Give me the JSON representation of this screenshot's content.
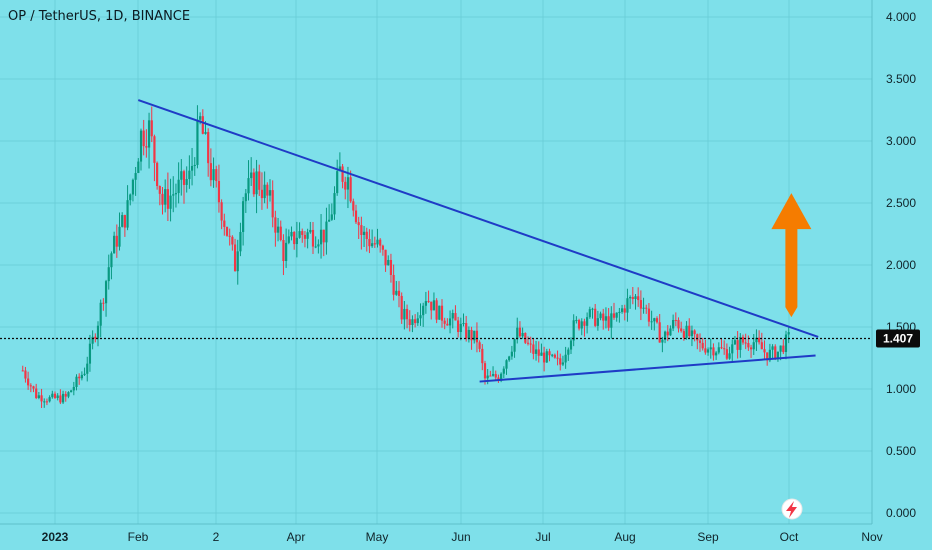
{
  "header": {
    "symbol": "OP / TetherUS, 1D, BINANCE"
  },
  "colors": {
    "background": "#7ee0ea",
    "grid": "#6ccfd9",
    "up": "#089981",
    "down": "#f23645",
    "trendline": "#1f3bc6",
    "arrow": "#f57c00",
    "price_label_bg": "#0b0b0b",
    "price_label_text": "#ffffff"
  },
  "current_price_label": "1.407",
  "chart_data": {
    "type": "candlestick",
    "x_tick_labels": [
      "2023",
      "Feb",
      "2",
      "Apr",
      "May",
      "Jun",
      "Jul",
      "Aug",
      "Sep",
      "Oct",
      "Nov"
    ],
    "y_ticks": [
      {
        "value": 4.0,
        "label": "4.000"
      },
      {
        "value": 3.5,
        "label": "3.500"
      },
      {
        "value": 3.0,
        "label": "3.000"
      },
      {
        "value": 2.5,
        "label": "2.500"
      },
      {
        "value": 2.0,
        "label": "2.000"
      },
      {
        "value": 1.5,
        "label": "1.500"
      },
      {
        "value": 1.0,
        "label": "1.000"
      },
      {
        "value": 0.5,
        "label": "0.500"
      },
      {
        "value": 0.0,
        "label": "0.000"
      }
    ],
    "ylim": [
      -0.05,
      4.1
    ],
    "current_price": 1.407,
    "close_path": [
      [
        "2022-12-20",
        1.15
      ],
      [
        "2022-12-25",
        0.95
      ],
      [
        "2022-12-30",
        0.92
      ],
      [
        "2023-01-05",
        0.93
      ],
      [
        "2023-01-12",
        1.15
      ],
      [
        "2023-01-17",
        1.55
      ],
      [
        "2023-01-22",
        2.1
      ],
      [
        "2023-01-28",
        2.45
      ],
      [
        "2023-02-02",
        3.05
      ],
      [
        "2023-02-05",
        3.1
      ],
      [
        "2023-02-10",
        2.5
      ],
      [
        "2023-02-15",
        2.6
      ],
      [
        "2023-02-20",
        2.7
      ],
      [
        "2023-02-24",
        3.15
      ],
      [
        "2023-02-28",
        2.75
      ],
      [
        "2023-03-04",
        2.45
      ],
      [
        "2023-03-09",
        2.0
      ],
      [
        "2023-03-12",
        2.55
      ],
      [
        "2023-03-17",
        2.7
      ],
      [
        "2023-03-22",
        2.5
      ],
      [
        "2023-03-27",
        2.1
      ],
      [
        "2023-04-01",
        2.25
      ],
      [
        "2023-04-07",
        2.25
      ],
      [
        "2023-04-12",
        2.25
      ],
      [
        "2023-04-17",
        2.75
      ],
      [
        "2023-04-20",
        2.7
      ],
      [
        "2023-04-25",
        2.25
      ],
      [
        "2023-05-01",
        2.15
      ],
      [
        "2023-05-05",
        2.0
      ],
      [
        "2023-05-10",
        1.6
      ],
      [
        "2023-05-14",
        1.55
      ],
      [
        "2023-05-19",
        1.75
      ],
      [
        "2023-05-24",
        1.6
      ],
      [
        "2023-05-29",
        1.55
      ],
      [
        "2023-06-03",
        1.45
      ],
      [
        "2023-06-07",
        1.4
      ],
      [
        "2023-06-10",
        1.08
      ],
      [
        "2023-06-15",
        1.1
      ],
      [
        "2023-06-22",
        1.45
      ],
      [
        "2023-06-28",
        1.3
      ],
      [
        "2023-07-03",
        1.25
      ],
      [
        "2023-07-08",
        1.2
      ],
      [
        "2023-07-13",
        1.5
      ],
      [
        "2023-07-18",
        1.6
      ],
      [
        "2023-07-23",
        1.55
      ],
      [
        "2023-07-28",
        1.55
      ],
      [
        "2023-08-02",
        1.7
      ],
      [
        "2023-08-06",
        1.75
      ],
      [
        "2023-08-11",
        1.55
      ],
      [
        "2023-08-15",
        1.4
      ],
      [
        "2023-08-20",
        1.55
      ],
      [
        "2023-08-24",
        1.45
      ],
      [
        "2023-08-29",
        1.35
      ],
      [
        "2023-09-03",
        1.33
      ],
      [
        "2023-09-08",
        1.3
      ],
      [
        "2023-09-13",
        1.38
      ],
      [
        "2023-09-18",
        1.38
      ],
      [
        "2023-09-23",
        1.28
      ],
      [
        "2023-09-27",
        1.3
      ],
      [
        "2023-10-01",
        1.407
      ]
    ],
    "trendlines": [
      {
        "name": "resistance",
        "from": [
          "2023-02-01",
          3.33
        ],
        "to": [
          "2023-10-12",
          1.42
        ]
      },
      {
        "name": "support",
        "from": [
          "2023-06-08",
          1.06
        ],
        "to": [
          "2023-10-11",
          1.27
        ]
      }
    ],
    "arrow": {
      "direction": "up",
      "from": [
        "2023-10-02",
        1.58
      ],
      "to": [
        "2023-10-02",
        2.58
      ]
    }
  }
}
